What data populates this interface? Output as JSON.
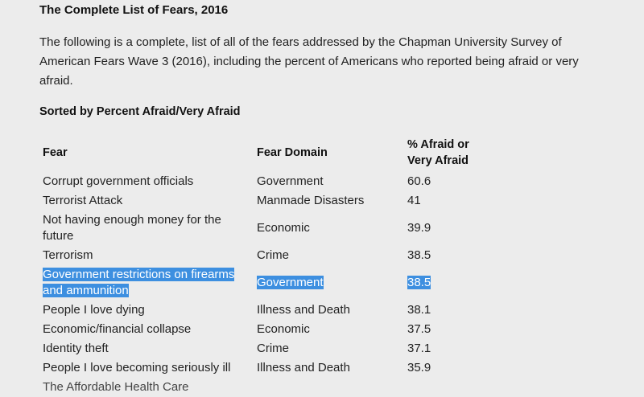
{
  "title": "The Complete List of Fears, 2016",
  "intro": "The following is a complete, list of all of the fears addressed by the Chapman University Survey of American Fears Wave 3 (2016), including the percent of Americans who reported being afraid or very afraid.",
  "subtitle": "Sorted by Percent Afraid/Very Afraid",
  "table": {
    "headers": [
      "Fear",
      "Fear Domain",
      "% Afraid or Very Afraid"
    ],
    "rows": [
      {
        "fear": "Corrupt government officials",
        "domain": "Government",
        "percent": "60.6"
      },
      {
        "fear": "Terrorist Attack",
        "domain": "Manmade Disasters",
        "percent": "41"
      },
      {
        "fear": "Not having enough money for the future",
        "domain": "Economic",
        "percent": "39.9"
      },
      {
        "fear": "Terrorism",
        "domain": "Crime",
        "percent": "38.5"
      },
      {
        "fear": "Government restrictions on firearms and ammunition",
        "domain": "Government",
        "percent": "38.5"
      },
      {
        "fear": "People I love dying",
        "domain": "Illness and Death",
        "percent": "38.1"
      },
      {
        "fear": "Economic/financial collapse",
        "domain": "Economic",
        "percent": "37.5"
      },
      {
        "fear": "Identity theft",
        "domain": "Crime",
        "percent": "37.1"
      },
      {
        "fear": "People I love becoming seriously ill",
        "domain": "Illness and Death",
        "percent": "35.9"
      },
      {
        "fear": "The Affordable Health Care",
        "domain": "",
        "percent": ""
      }
    ],
    "selected_row_index": 4
  },
  "colors": {
    "background": "#ececec",
    "selection": "#3d8fe0"
  }
}
